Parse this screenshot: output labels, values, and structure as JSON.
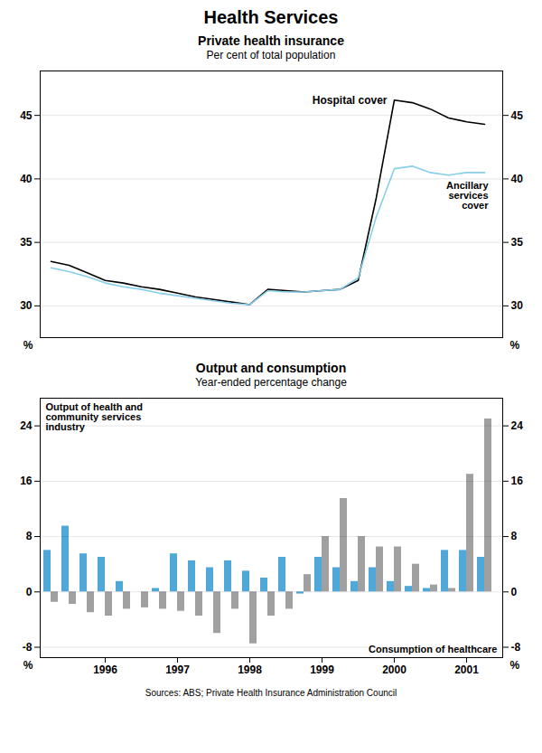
{
  "title": "Health Services",
  "source": "Sources: ABS; Private Health Insurance Administration Council",
  "chart_data": [
    {
      "type": "line",
      "title": "Private health insurance",
      "subtitle": "Per cent of total population",
      "x": [
        1995.25,
        1995.5,
        1995.75,
        1996.0,
        1996.25,
        1996.5,
        1996.75,
        1997.0,
        1997.25,
        1997.5,
        1997.75,
        1998.0,
        1998.25,
        1998.5,
        1998.75,
        1999.0,
        1999.25,
        1999.5,
        1999.75,
        2000.0,
        2000.25,
        2000.5,
        2000.75,
        2001.0,
        2001.25
      ],
      "series": [
        {
          "name": "Hospital cover",
          "color": "#000000",
          "values": [
            33.5,
            33.2,
            32.6,
            32.0,
            31.8,
            31.5,
            31.3,
            31.0,
            30.7,
            30.5,
            30.3,
            30.1,
            31.3,
            31.2,
            31.1,
            31.2,
            31.3,
            32.0,
            38.5,
            46.2,
            46.0,
            45.5,
            44.8,
            44.5,
            44.3
          ]
        },
        {
          "name": "Ancillary\nservices\ncover",
          "color": "#87ceeb",
          "values": [
            33.0,
            32.7,
            32.3,
            31.8,
            31.5,
            31.3,
            31.0,
            30.8,
            30.6,
            30.4,
            30.2,
            30.1,
            31.2,
            31.1,
            31.1,
            31.2,
            31.3,
            32.2,
            37.0,
            40.8,
            41.0,
            40.5,
            40.3,
            40.5,
            40.5
          ]
        }
      ],
      "xlim": [
        1995.1,
        2001.5
      ],
      "ylim": [
        27.5,
        48.5
      ],
      "yticks": [
        30,
        35,
        40,
        45
      ],
      "ylabel": "%",
      "grid": true,
      "tick_labels": "y"
    },
    {
      "type": "bar",
      "title": "Output and consumption",
      "subtitle": "Year-ended percentage change",
      "x": [
        1995.25,
        1995.5,
        1995.75,
        1996.0,
        1996.25,
        1996.5,
        1996.75,
        1997.0,
        1997.25,
        1997.5,
        1997.75,
        1998.0,
        1998.25,
        1998.5,
        1998.75,
        1999.0,
        1999.25,
        1999.5,
        1999.75,
        2000.0,
        2000.25,
        2000.5,
        2000.75,
        2001.0,
        2001.25
      ],
      "series": [
        {
          "name": "Output of health and\ncommunity services\nindustry",
          "color": "#4fa8d8",
          "values": [
            6.0,
            9.5,
            5.5,
            5.0,
            1.5,
            0.0,
            0.5,
            5.5,
            4.5,
            3.5,
            4.5,
            3.0,
            2.0,
            5.0,
            -0.3,
            5.0,
            3.5,
            1.5,
            3.5,
            1.5,
            0.8,
            0.5,
            6.0,
            6.0,
            5.0
          ]
        },
        {
          "name": "Consumption of healthcare",
          "color": "#a0a0a0",
          "values": [
            -1.5,
            -1.8,
            -3.0,
            -3.5,
            -2.5,
            -2.3,
            -2.5,
            -2.8,
            -3.5,
            -6.0,
            -2.5,
            -7.5,
            -3.5,
            -2.5,
            2.5,
            8.0,
            13.5,
            8.0,
            6.5,
            6.5,
            4.0,
            1.0,
            0.5,
            17.0,
            25.0
          ]
        }
      ],
      "xlim": [
        1995.1,
        2001.5
      ],
      "xticks": [
        1996,
        1997,
        1998,
        1999,
        2000,
        2001
      ],
      "ylim": [
        -9.5,
        28
      ],
      "yticks": [
        -8,
        0,
        8,
        16,
        24
      ],
      "ylabel": "%",
      "grid": true
    }
  ]
}
